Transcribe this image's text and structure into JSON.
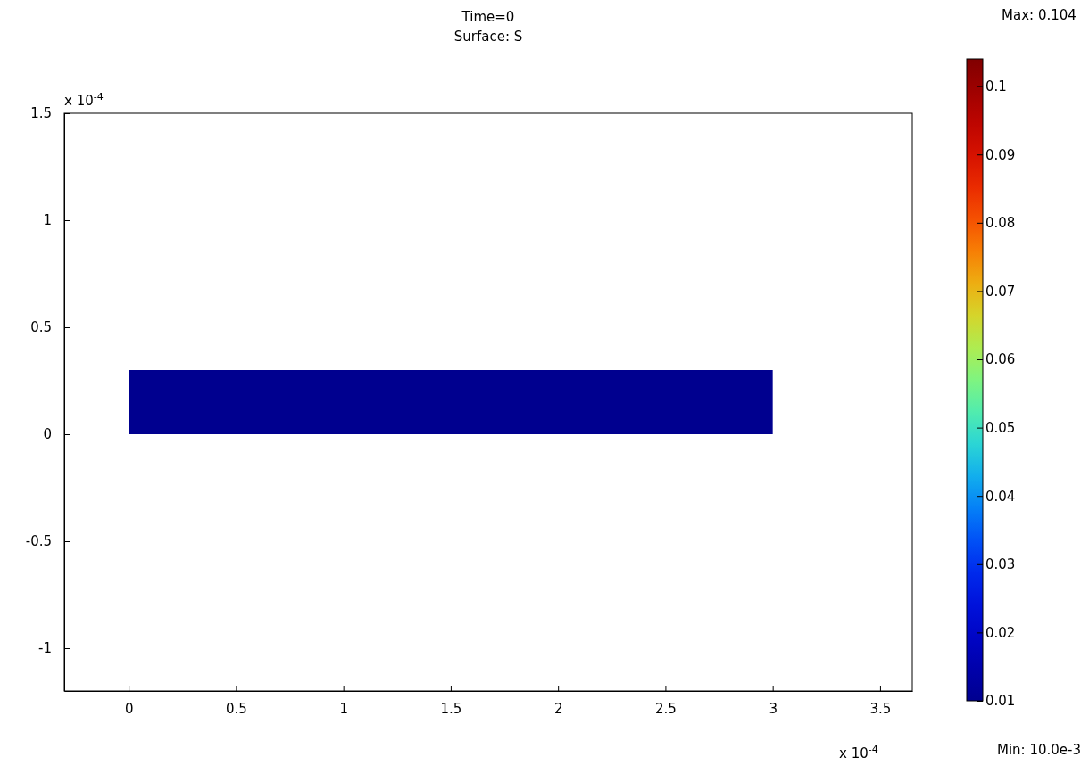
{
  "chart_data": {
    "type": "area",
    "title": "Time=0",
    "subtitle": "Surface: S",
    "x": [
      0,
      3
    ],
    "values": [
      0.3,
      0.3
    ],
    "color": "#00008f",
    "xlim": [
      -0.3,
      3.65
    ],
    "ylim": [
      -1.2,
      1.5
    ],
    "xticks": [
      0,
      0.5,
      1,
      1.5,
      2,
      2.5,
      3,
      3.5
    ],
    "yticks": [
      -1,
      -0.5,
      0,
      0.5,
      1,
      1.5
    ],
    "clim": [
      0.01,
      0.104
    ],
    "cticks": [
      0.01,
      0.02,
      0.03,
      0.04,
      0.05,
      0.06,
      0.07,
      0.08,
      0.09,
      0.1
    ],
    "annotations": [
      "x 10$^{-4}$",
      "x 10$^{-4}$",
      "Max: 0.104",
      "Min: 10.0e-3"
    ]
  }
}
